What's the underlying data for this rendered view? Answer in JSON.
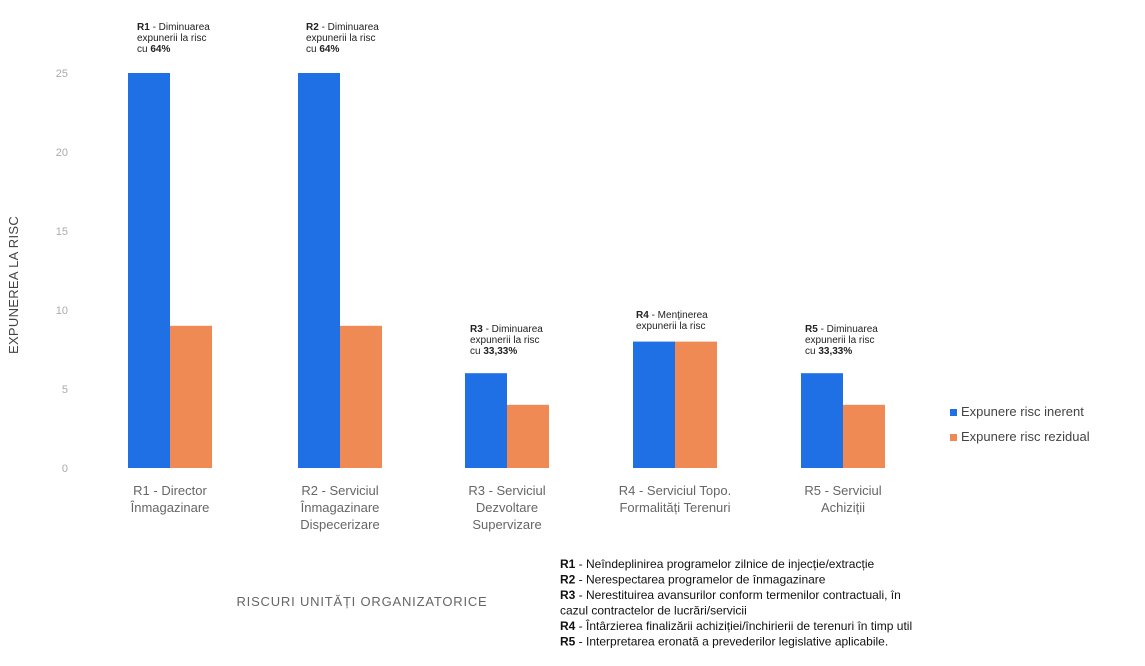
{
  "chart_data": {
    "type": "bar",
    "ylabel": "EXPUNEREA LA RISC",
    "xlabel": "RISCURI UNITĂȚI ORGANIZATORICE",
    "ylim": [
      0,
      25
    ],
    "yticks": [
      "0",
      "5",
      "10",
      "15",
      "20",
      "25"
    ],
    "grid": false,
    "legend_position": "right",
    "categories": [
      [
        "R1 - Director",
        "Înmagazinare"
      ],
      [
        "R2 - Serviciul",
        "Înmagazinare",
        "Dispecerizare"
      ],
      [
        "R3 - Serviciul",
        "Dezvoltare",
        "Supervizare"
      ],
      [
        "R4 - Serviciul Topo.",
        "Formalități Terenuri"
      ],
      [
        "R5 - Serviciul",
        "Achiziții"
      ]
    ],
    "series": [
      {
        "name": "Expunere risc inerent",
        "color": "#1f6fe5",
        "values": [
          25,
          25,
          6,
          8,
          6
        ]
      },
      {
        "name": "Expunere risc rezidual",
        "color": "#f08a55",
        "values": [
          9,
          9,
          4,
          8,
          4
        ]
      }
    ],
    "annotations": [
      {
        "code": "R1",
        "lines": [
          "R1 - Diminuarea",
          "expunerii la risc",
          "cu 64%"
        ]
      },
      {
        "code": "R2",
        "lines": [
          "R2 - Diminuarea",
          "expunerii la risc",
          "cu 64%"
        ]
      },
      {
        "code": "R3",
        "lines": [
          "R3 - Diminuarea",
          "expunerii la risc",
          "cu 33,33%"
        ]
      },
      {
        "code": "R4",
        "lines": [
          "R4 - Menținerea",
          "expunerii la risc"
        ]
      },
      {
        "code": "R5",
        "lines": [
          "R5 - Diminuarea",
          "expunerii la risc",
          "cu 33,33%"
        ]
      }
    ]
  },
  "notes": [
    {
      "code": "R1",
      "text": " - Neîndeplinirea programelor zilnice de injecție/extracție"
    },
    {
      "code": "R2",
      "text": " - Nerespectarea programelor de înmagazinare"
    },
    {
      "code": "R3",
      "text": " - Nerestituirea avansurilor conform termenilor contractuali, în"
    },
    {
      "code": "",
      "text": "cazul contractelor de lucrări/servicii"
    },
    {
      "code": "R4",
      "text": " - Întârzierea finalizării achiziției/închirierii de terenuri în timp util"
    },
    {
      "code": "R5",
      "text": " - Interpretarea eronată a prevederilor legislative aplicabile."
    }
  ]
}
